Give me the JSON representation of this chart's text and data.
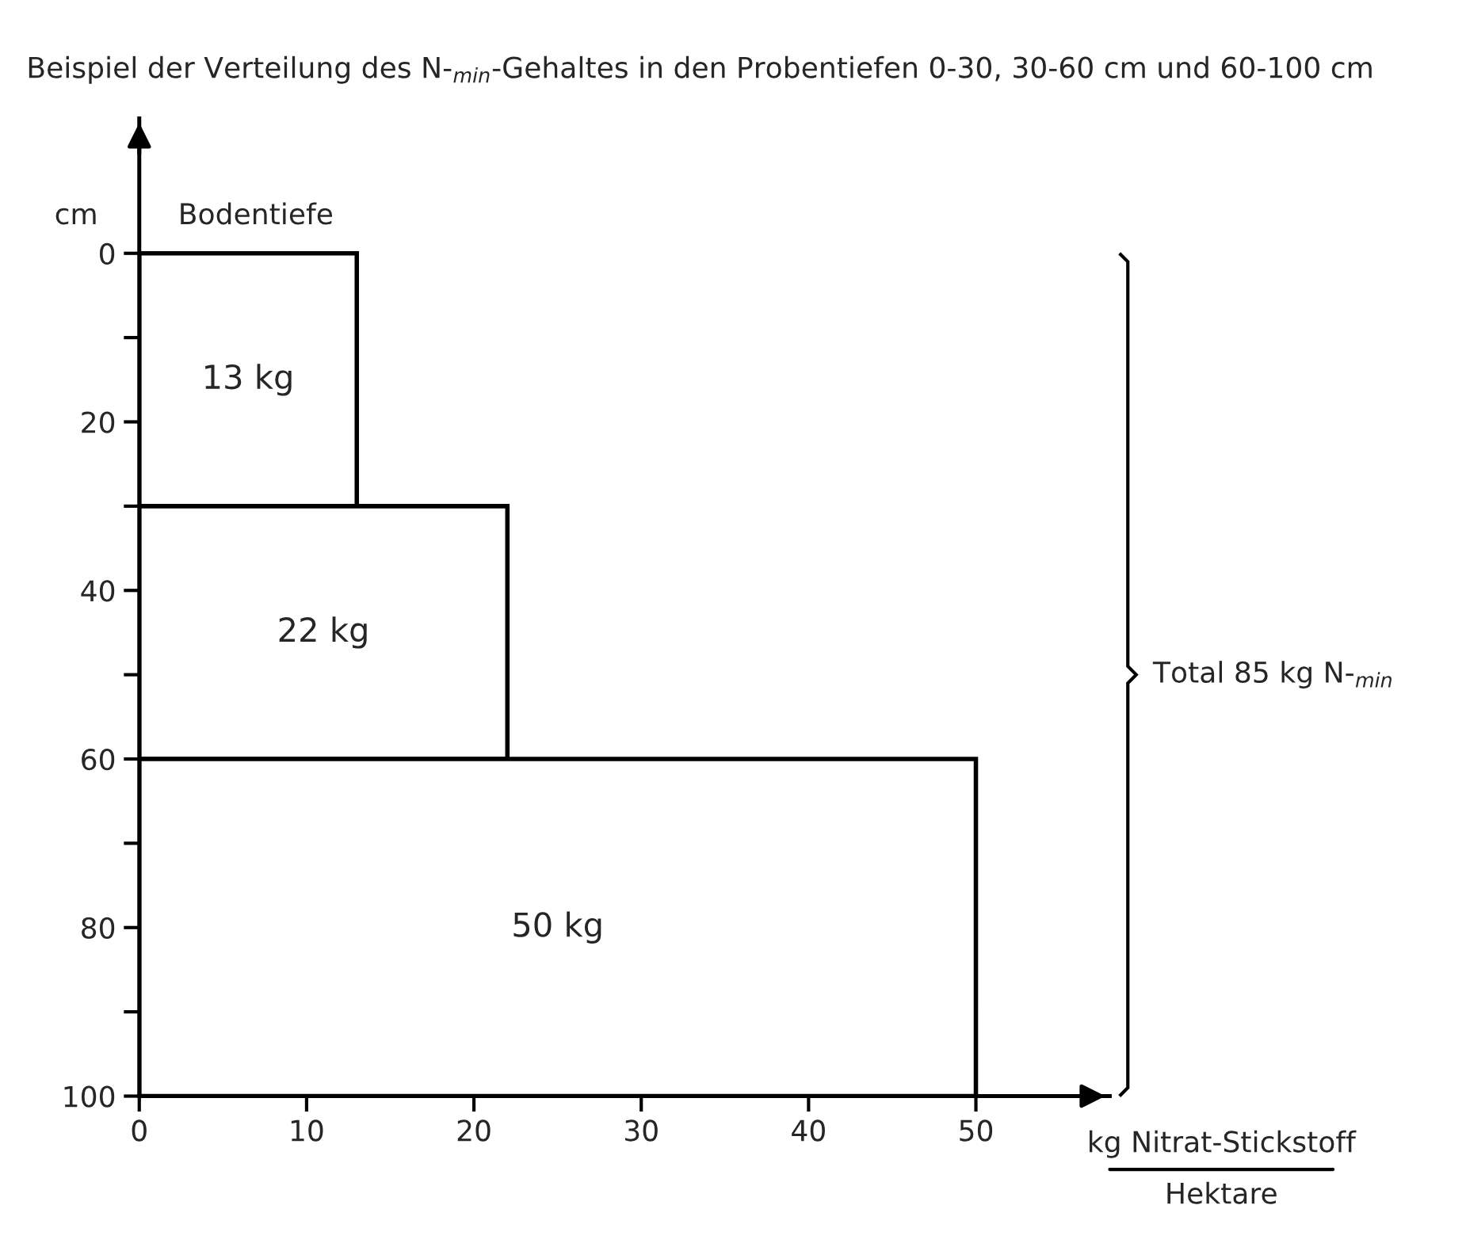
{
  "chart_data": {
    "type": "histogram",
    "orientation": "horizontal",
    "title": "Beispiel der Verteilung des N-$_{min}$-Gehaltes in den Probentiefen 0-30, 30-60 cm und 60-100 cm",
    "xlabel": "kg Nitrat-Stickstoff\nHektare",
    "ylabel": "cm",
    "annotations": [
      "Bodentiefe",
      "Total 85 kg N-$_{min}$"
    ],
    "bins": [
      0,
      30,
      60,
      100
    ],
    "values": [
      13,
      22,
      50
    ],
    "value_labels": [
      "13 kg",
      "22 kg",
      "50 kg"
    ],
    "color": "#ffffff",
    "xlim": [
      0,
      58
    ],
    "xticks": [
      0,
      10,
      20,
      30,
      40,
      50
    ],
    "ylim": [
      100,
      -16
    ],
    "yticks": [
      0,
      {
        "value": 10,
        "label": null
      },
      20,
      {
        "value": 30,
        "label": null
      },
      40,
      {
        "value": 50,
        "label": null
      },
      60,
      {
        "value": 70,
        "label": null
      },
      80,
      {
        "value": 90,
        "label": null
      },
      100
    ],
    "grid": false
  }
}
